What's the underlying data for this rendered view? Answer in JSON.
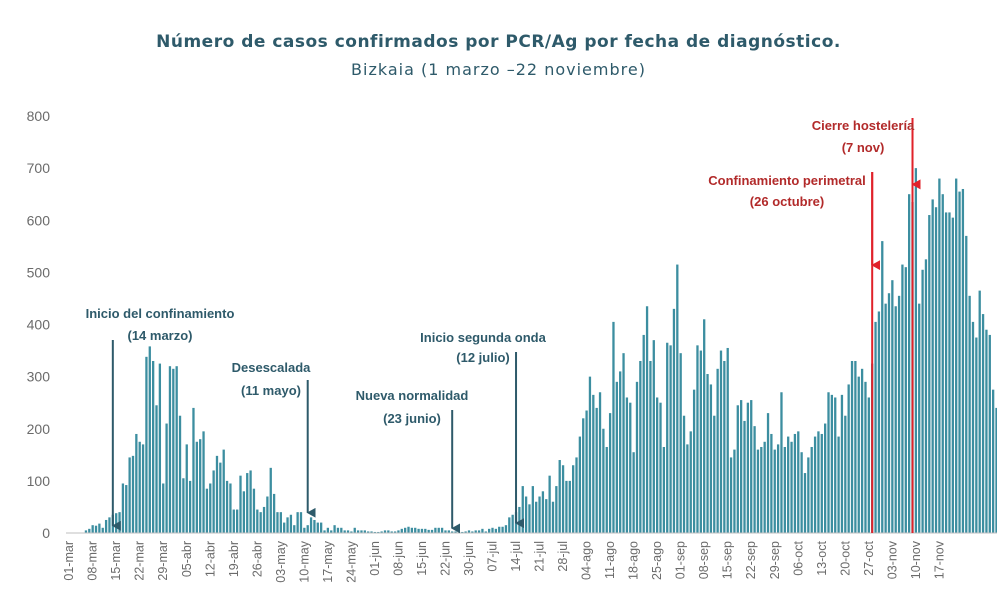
{
  "chart_data": {
    "type": "bar",
    "title": "Número de casos confirmados por PCR/Ag por fecha de diagnóstico.",
    "subtitle": "Bizkaia (1 marzo –22 noviembre)",
    "ylim": [
      0,
      800
    ],
    "yticks": [
      0,
      100,
      200,
      300,
      400,
      500,
      600,
      700,
      800
    ],
    "x_start": "2020-03-01",
    "x_tick_labels": [
      "01-mar",
      "08-mar",
      "15-mar",
      "22-mar",
      "29-mar",
      "05-abr",
      "12-abr",
      "19-abr",
      "26-abr",
      "03-may",
      "10-may",
      "17-may",
      "24-may",
      "01-jun",
      "08-jun",
      "15-jun",
      "22-jun",
      "30-jun",
      "07-jul",
      "14-jul",
      "21-jul",
      "28-jul",
      "04-ago",
      "11-ago",
      "18-ago",
      "25-ago",
      "01-sep",
      "08-sep",
      "15-sep",
      "22-sep",
      "29-sep",
      "06-oct",
      "13-oct",
      "20-oct",
      "27-oct",
      "03-nov",
      "10-nov",
      "17-nov"
    ],
    "bar_color": "#3c8ea0",
    "values": [
      0,
      0,
      0,
      0,
      0,
      5,
      8,
      15,
      14,
      18,
      10,
      25,
      30,
      35,
      38,
      40,
      95,
      92,
      145,
      148,
      190,
      175,
      170,
      338,
      358,
      330,
      245,
      325,
      95,
      210,
      320,
      315,
      320,
      225,
      105,
      170,
      100,
      240,
      175,
      180,
      195,
      85,
      95,
      120,
      148,
      135,
      160,
      100,
      95,
      45,
      45,
      110,
      80,
      115,
      120,
      85,
      45,
      40,
      50,
      70,
      125,
      75,
      40,
      40,
      20,
      30,
      35,
      15,
      40,
      40,
      10,
      15,
      30,
      25,
      20,
      20,
      5,
      10,
      5,
      15,
      10,
      10,
      5,
      5,
      3,
      10,
      5,
      5,
      5,
      3,
      3,
      2,
      2,
      3,
      5,
      5,
      3,
      3,
      5,
      8,
      10,
      12,
      10,
      10,
      8,
      8,
      8,
      6,
      6,
      10,
      10,
      10,
      5,
      5,
      3,
      3,
      2,
      2,
      3,
      5,
      3,
      5,
      5,
      8,
      3,
      8,
      10,
      8,
      12,
      12,
      15,
      30,
      35,
      40,
      50,
      90,
      70,
      55,
      90,
      60,
      70,
      80,
      65,
      110,
      60,
      90,
      140,
      130,
      100,
      100,
      130,
      145,
      185,
      220,
      235,
      300,
      265,
      240,
      270,
      200,
      165,
      230,
      405,
      290,
      310,
      345,
      260,
      250,
      155,
      290,
      330,
      380,
      435,
      330,
      370,
      260,
      250,
      165,
      365,
      360,
      430,
      515,
      345,
      225,
      170,
      195,
      275,
      360,
      350,
      410,
      305,
      285,
      225,
      315,
      350,
      330,
      355,
      145,
      160,
      245,
      255,
      215,
      250,
      255,
      205,
      160,
      165,
      175,
      230,
      190,
      160,
      170,
      270,
      165,
      185,
      175,
      190,
      195,
      155,
      115,
      145,
      165,
      185,
      195,
      190,
      210,
      270,
      265,
      260,
      185,
      265,
      225,
      285,
      330,
      330,
      300,
      315,
      290,
      260,
      325,
      405,
      425,
      560,
      440,
      460,
      485,
      435,
      455,
      515,
      510,
      650,
      635,
      700,
      440,
      505,
      525,
      610,
      640,
      625,
      680,
      650,
      615,
      615,
      605,
      680,
      655,
      660,
      570,
      455,
      405,
      375,
      465,
      420,
      390,
      380,
      275,
      240
    ]
  },
  "annotations": [
    {
      "line1": "Inicio del confinamiento",
      "line2": "(14 marzo)",
      "date": "2020-03-14",
      "arrow_top": 340,
      "arrow_value": 10,
      "text_x": 160,
      "line1_y": 318,
      "line2_y": 340,
      "color": "#2e5a6a"
    },
    {
      "line1": "Desescalada",
      "line2": "(11 mayo)",
      "date": "2020-05-11",
      "arrow_top": 380,
      "arrow_value": 35,
      "text_x": 271,
      "line1_y": 372,
      "line2_y": 395,
      "color": "#2e5a6a"
    },
    {
      "line1": "Nueva normalidad",
      "line2": "(23 junio)",
      "date": "2020-06-23",
      "arrow_top": 410,
      "arrow_value": 5,
      "text_x": 412,
      "line1_y": 400,
      "line2_y": 423,
      "color": "#2e5a6a"
    },
    {
      "line1": "Inicio segunda onda",
      "line2": "(12 julio)",
      "date": "2020-07-12",
      "arrow_top": 352,
      "arrow_value": 15,
      "text_x": 483,
      "line1_y": 342,
      "line2_y": 362,
      "color": "#2e5a6a"
    },
    {
      "line1": "Confinamiento perimetral",
      "line2": "(26 octubre)",
      "date": "2020-10-26",
      "arrow_top": 172,
      "arrow_value": 510,
      "text_x": 787,
      "line1_y": 185,
      "line2_y": 206,
      "color": "#b22a2a",
      "arrow_color": "#e0222a"
    },
    {
      "line1": "Cierre hostelería",
      "line2": "(7 nov)",
      "date": "2020-11-07",
      "arrow_top": 118,
      "arrow_value": 665,
      "text_x": 863,
      "line1_y": 130,
      "line2_y": 152,
      "color": "#b22a2a",
      "arrow_color": "#e0222a"
    }
  ]
}
